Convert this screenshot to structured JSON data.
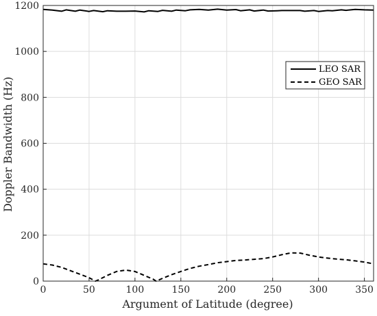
{
  "chart_data": {
    "type": "line",
    "xlabel": "Argument of Latitude (degree)",
    "ylabel": "Doppler Bandwidth (Hz)",
    "xlim": [
      0,
      360
    ],
    "ylim": [
      0,
      1200
    ],
    "xticks": [
      "0",
      "50",
      "100",
      "150",
      "200",
      "250",
      "300",
      "350"
    ],
    "yticks": [
      "0",
      "200",
      "400",
      "600",
      "800",
      "1000",
      "1200"
    ],
    "grid": true,
    "legend_position": "top-right",
    "series": [
      {
        "name": "LEO SAR",
        "style": "solid",
        "color": "#000000",
        "x": [
          0,
          10,
          20,
          25,
          35,
          40,
          50,
          55,
          65,
          70,
          80,
          90,
          100,
          110,
          115,
          125,
          130,
          140,
          145,
          155,
          160,
          170,
          180,
          190,
          200,
          210,
          215,
          225,
          230,
          240,
          245,
          255,
          260,
          270,
          280,
          285,
          295,
          300,
          310,
          315,
          325,
          330,
          340,
          350,
          360
        ],
        "y": [
          1183,
          1180,
          1175,
          1181,
          1175,
          1180,
          1174,
          1178,
          1173,
          1177,
          1175,
          1175,
          1176,
          1172,
          1177,
          1174,
          1179,
          1175,
          1180,
          1177,
          1181,
          1183,
          1180,
          1184,
          1180,
          1182,
          1177,
          1181,
          1176,
          1180,
          1176,
          1177,
          1178,
          1178,
          1178,
          1175,
          1178,
          1174,
          1178,
          1177,
          1181,
          1179,
          1183,
          1181,
          1180
        ]
      },
      {
        "name": "GEO SAR",
        "style": "dashed",
        "color": "#000000",
        "x": [
          0,
          10,
          20,
          30,
          40,
          50,
          57,
          60,
          70,
          80,
          90,
          100,
          110,
          120,
          123,
          130,
          140,
          150,
          160,
          170,
          180,
          190,
          200,
          210,
          220,
          230,
          240,
          250,
          260,
          270,
          280,
          290,
          300,
          310,
          320,
          330,
          340,
          350,
          360
        ],
        "y": [
          75,
          70,
          60,
          45,
          30,
          15,
          0,
          5,
          25,
          42,
          48,
          42,
          25,
          8,
          0,
          12,
          28,
          42,
          55,
          65,
          72,
          80,
          85,
          90,
          92,
          95,
          98,
          105,
          115,
          123,
          122,
          113,
          105,
          100,
          96,
          93,
          88,
          83,
          75
        ]
      }
    ]
  }
}
